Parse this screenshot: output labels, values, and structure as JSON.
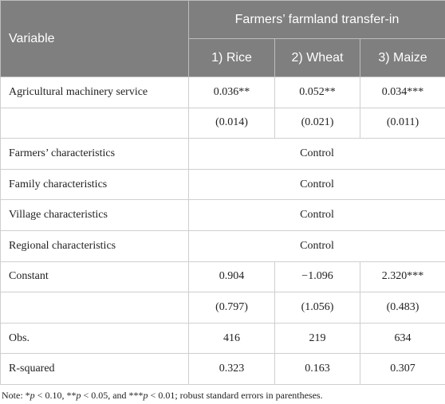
{
  "table": {
    "header": {
      "variable": "Variable",
      "group": "Farmers’ farmland transfer-in",
      "columns": [
        "1) Rice",
        "2) Wheat",
        "3) Maize"
      ]
    },
    "rows": [
      {
        "label": "Agricultural machinery service",
        "cells": [
          "0.036**",
          "0.052**",
          "0.034***"
        ]
      },
      {
        "cells": [
          "(0.014)",
          "(0.021)",
          "(0.011)"
        ]
      },
      {
        "label": "Farmers’ characteristics",
        "value": "Control"
      },
      {
        "label": "Family characteristics",
        "value": "Control"
      },
      {
        "label": "Village characteristics",
        "value": "Control"
      },
      {
        "label": "Regional characteristics",
        "value": "Control"
      },
      {
        "label": "Constant",
        "cells": [
          "0.904",
          "−1.096",
          "2.320***"
        ]
      },
      {
        "cells": [
          "(0.797)",
          "(1.056)",
          "(0.483)"
        ]
      },
      {
        "label": "Obs.",
        "cells": [
          "416",
          "219",
          "634"
        ]
      },
      {
        "label": "R-squared",
        "cells": [
          "0.323",
          "0.163",
          "0.307"
        ]
      }
    ],
    "note": [
      "Note: *",
      "p",
      " < 0.10, **",
      "p",
      " < 0.05, and ***",
      "p",
      " < 0.01; robust standard errors in parentheses."
    ]
  }
}
